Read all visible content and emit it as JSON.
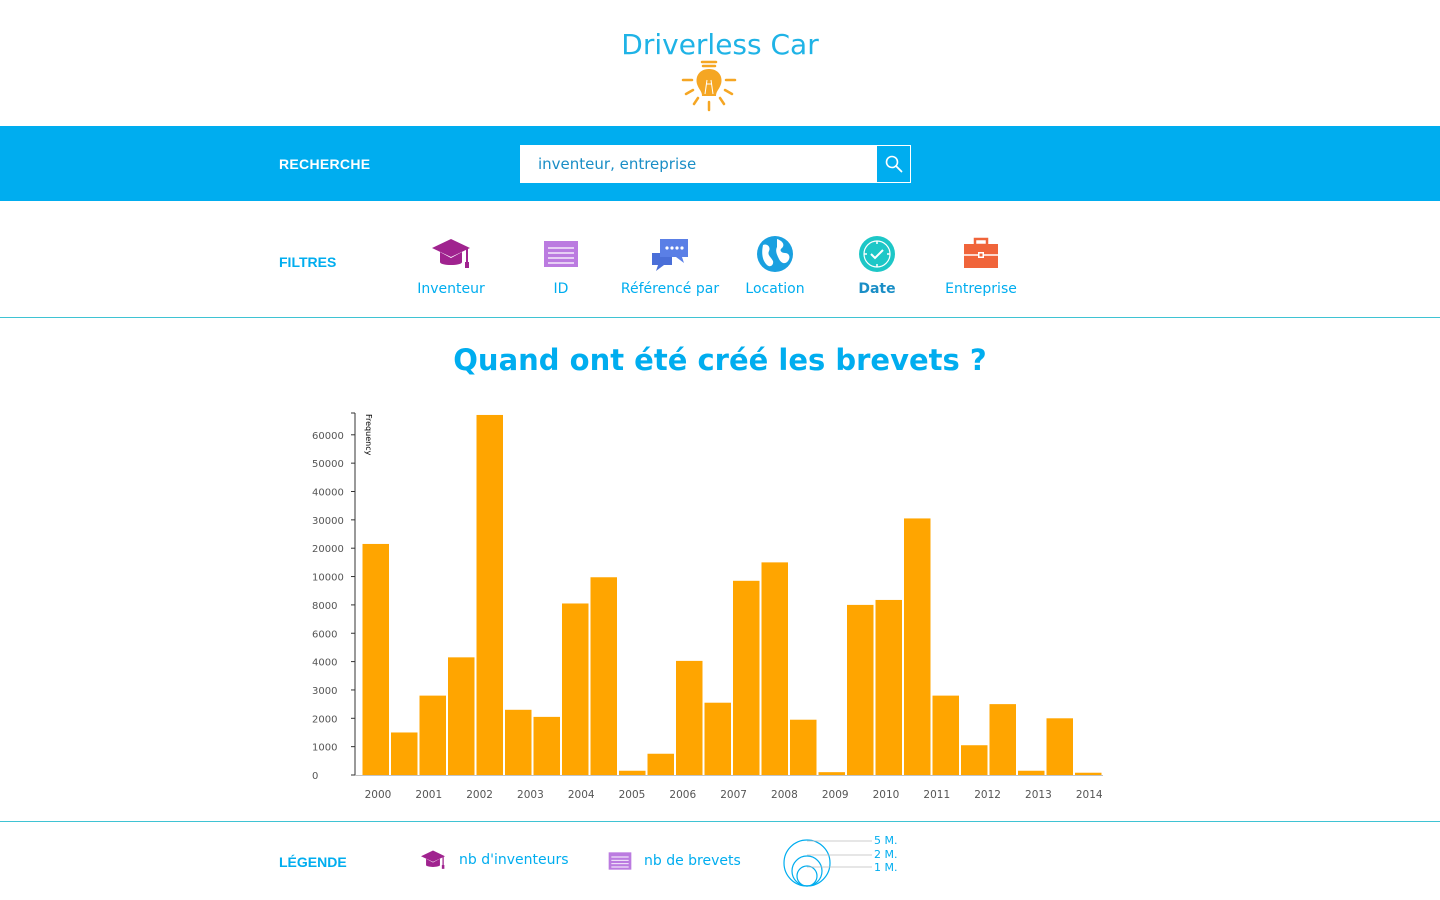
{
  "header": {
    "logo_text": "Driverless Car",
    "bulb_icon": "lightbulb-icon"
  },
  "search": {
    "label": "RECHERCHE",
    "placeholder": "inventeur, entreprise",
    "button_icon": "search-icon"
  },
  "filters": {
    "label": "FILTRES",
    "items": [
      {
        "label": "Inventeur",
        "icon": "graduation-cap-icon",
        "active": false
      },
      {
        "label": "ID",
        "icon": "list-icon",
        "active": false
      },
      {
        "label": "Référencé par",
        "icon": "chat-bubbles-icon",
        "active": false
      },
      {
        "label": "Location",
        "icon": "globe-icon",
        "active": false
      },
      {
        "label": "Date",
        "icon": "clock-icon",
        "active": true
      },
      {
        "label": "Entreprise",
        "icon": "briefcase-icon",
        "active": false
      }
    ]
  },
  "chart_title": "Quand ont été créé les brevets ?",
  "chart_data": {
    "type": "bar",
    "ylabel": "Frequency",
    "y_ticks": [
      "0",
      "1000",
      "2000",
      "3000",
      "4000",
      "6000",
      "8000",
      "10000",
      "20000",
      "30000",
      "40000",
      "50000",
      "60000"
    ],
    "x_ticks": [
      "2000",
      "2001",
      "2002",
      "2003",
      "2004",
      "2005",
      "2006",
      "2007",
      "2008",
      "2009",
      "2010",
      "2011",
      "2012",
      "2013",
      "2014"
    ],
    "bar_color": "#ffa500",
    "bars": [
      {
        "bin": 1,
        "value": 21500
      },
      {
        "bin": 2,
        "value": 1500
      },
      {
        "bin": 3,
        "value": 2800
      },
      {
        "bin": 4,
        "value": 4300
      },
      {
        "bin": 5,
        "value": 67000
      },
      {
        "bin": 6,
        "value": 2300
      },
      {
        "bin": 7,
        "value": 2050
      },
      {
        "bin": 8,
        "value": 8100
      },
      {
        "bin": 9,
        "value": 9950
      },
      {
        "bin": 10,
        "value": 150
      },
      {
        "bin": 11,
        "value": 750
      },
      {
        "bin": 12,
        "value": 4050
      },
      {
        "bin": 13,
        "value": 2550
      },
      {
        "bin": 14,
        "value": 9700
      },
      {
        "bin": 15,
        "value": 15000
      },
      {
        "bin": 16,
        "value": 1950
      },
      {
        "bin": 17,
        "value": 100
      },
      {
        "bin": 18,
        "value": 8000
      },
      {
        "bin": 19,
        "value": 8350
      },
      {
        "bin": 20,
        "value": 30500
      },
      {
        "bin": 21,
        "value": 2800
      },
      {
        "bin": 22,
        "value": 1050
      },
      {
        "bin": 23,
        "value": 2500
      },
      {
        "bin": 24,
        "value": 150
      },
      {
        "bin": 25,
        "value": 2000
      },
      {
        "bin": 26,
        "value": 80
      }
    ]
  },
  "legend": {
    "label": "LÉGENDE",
    "inventors_text": "nb d'inventeurs",
    "patents_text": "nb de brevets",
    "scale": [
      "5 M.",
      "2 M.",
      "1 M."
    ]
  },
  "colors": {
    "accent": "#00adef",
    "bar": "#ffa500",
    "divider": "#3fc3d3"
  }
}
